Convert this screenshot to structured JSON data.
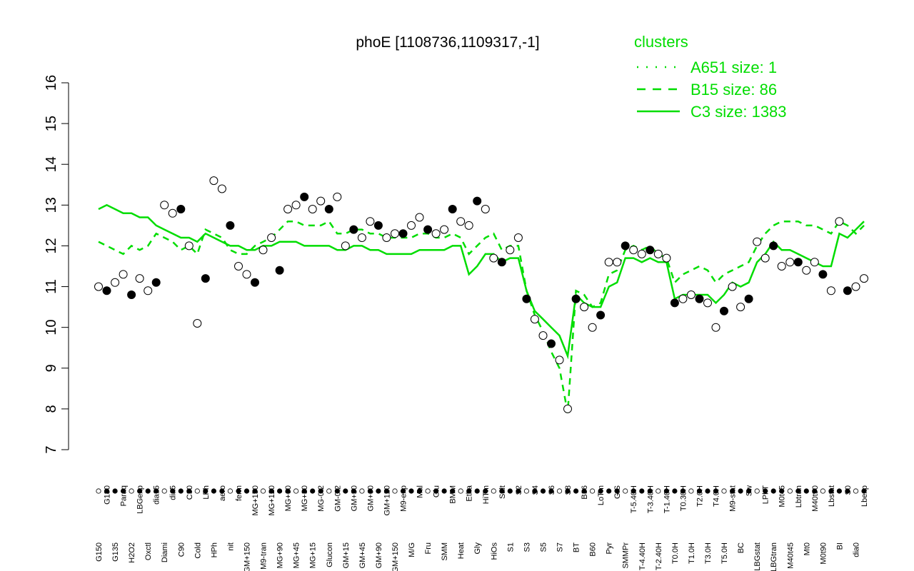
{
  "chart_data": {
    "type": "line",
    "title": "phoE [1108736,1109317,-1]",
    "xlabel": "",
    "ylabel": "",
    "ylim": [
      7,
      16
    ],
    "yticks": [
      7,
      8,
      9,
      10,
      11,
      12,
      13,
      14,
      15,
      16
    ],
    "grid": false,
    "legend": {
      "title": "clusters",
      "placement": "top-right",
      "entries": [
        {
          "label": "A651 size: 1",
          "style": "dotted"
        },
        {
          "label": "B15 size: 86",
          "style": "dashed"
        },
        {
          "label": "C3 size: 1383",
          "style": "solid"
        }
      ]
    },
    "line_color": "#00dd00",
    "x_tick_labels": [
      "G150",
      "G180",
      "G135",
      "Paraq",
      "H2O2",
      "LBGexp",
      "Oxctl",
      "dia15",
      "Diami",
      "dia5",
      "C90",
      "C30",
      "Cold",
      "LPh",
      "HPh",
      "aero",
      "nit",
      "ferm",
      "GM+150",
      "MG+150",
      "M9-tran",
      "MG+120",
      "MG+90",
      "MG+60",
      "MG+45",
      "MG+30",
      "MG+15",
      "MG-0.2",
      "Glucon",
      "GM-0.2",
      "GM+15",
      "GM+30",
      "GM+45",
      "GM+60",
      "GM+90",
      "GM+120",
      "GM+150",
      "M9-exp",
      "M/G",
      "Mal",
      "Fru",
      "Glu",
      "SMM",
      "BMM",
      "Heat",
      "Etha",
      "Gly",
      "HiTm",
      "HiOs",
      "Salt",
      "S1",
      "S2",
      "S3",
      "S4",
      "S5",
      "S6",
      "S7",
      "S8",
      "BT",
      "B36",
      "B60",
      "LoTm",
      "Pyr",
      "G/S",
      "SMMPr",
      "T-5.40H",
      "T-4.40H",
      "T-3.40H",
      "T-2.40H",
      "T-1.40H",
      "T0.0H",
      "T0.30H",
      "T1.0H",
      "T2.0H",
      "T3.0H",
      "T4.0H",
      "T5.0H",
      "M9-stat",
      "BC",
      "Sw",
      "LBGstat",
      "LPhT",
      "LBGtran",
      "M0t45",
      "M40t45",
      "Lbtran",
      "Mt0",
      "M40t90",
      "M0t90",
      "Lbstat",
      "BI",
      "S0",
      "dia0",
      "Lbexp"
    ],
    "series": [
      {
        "name": "",
        "style": "points",
        "values": [
          11.0,
          10.9,
          11.1,
          11.3,
          10.8,
          11.2,
          10.9,
          11.1,
          13.0,
          12.8,
          12.9,
          12.0,
          10.1,
          11.2,
          13.6,
          13.4,
          12.5,
          11.5,
          11.3,
          11.1,
          11.9,
          12.2,
          11.4,
          12.9,
          13.0,
          13.2,
          12.9,
          13.1,
          12.9,
          13.2,
          12.0,
          12.4,
          12.2,
          12.6,
          12.5,
          12.2,
          12.3,
          12.3,
          12.5,
          12.7,
          12.4,
          12.3,
          12.4,
          12.9,
          12.6,
          12.5,
          13.1,
          12.9,
          11.7,
          11.6,
          11.9,
          12.2,
          10.7,
          10.2,
          9.8,
          9.6,
          9.2,
          8.0,
          10.7,
          10.5,
          10.0,
          10.3,
          11.6,
          11.6,
          12.0,
          11.9,
          11.8,
          11.9,
          11.8,
          11.7,
          10.6,
          10.7,
          10.8,
          10.7,
          10.6,
          10.0,
          10.4,
          11.0,
          10.5,
          10.7,
          12.1,
          11.7,
          12.0,
          11.5,
          11.6,
          11.6,
          11.4,
          11.6,
          11.3,
          10.9,
          12.6,
          10.9,
          11.0,
          11.2
        ]
      },
      {
        "name": "",
        "style": "solid",
        "values": [
          12.9,
          13.0,
          12.9,
          12.8,
          12.8,
          12.7,
          12.7,
          12.5,
          12.4,
          12.3,
          12.2,
          12.2,
          12.1,
          12.3,
          12.2,
          12.1,
          12.0,
          12.0,
          11.9,
          11.9,
          12.0,
          12.0,
          12.1,
          12.1,
          12.1,
          12.0,
          12.0,
          12.0,
          12.0,
          11.9,
          11.9,
          12.0,
          12.0,
          11.9,
          11.9,
          11.8,
          11.8,
          11.8,
          11.8,
          11.9,
          11.9,
          11.9,
          11.9,
          12.0,
          12.0,
          11.3,
          11.5,
          11.8,
          11.8,
          11.6,
          11.7,
          11.7,
          10.9,
          10.4,
          10.2,
          10.0,
          9.8,
          9.3,
          10.8,
          10.6,
          10.5,
          10.5,
          11.0,
          11.1,
          11.7,
          11.7,
          11.6,
          11.7,
          11.6,
          11.6,
          10.7,
          10.8,
          10.8,
          10.8,
          10.8,
          10.6,
          10.8,
          11.1,
          11.0,
          11.1,
          11.6,
          11.8,
          12.1,
          11.9,
          11.9,
          11.8,
          11.7,
          11.6,
          11.5,
          11.5,
          12.3,
          12.2,
          12.4,
          12.6
        ]
      },
      {
        "name": "",
        "style": "dashed",
        "values": [
          12.1,
          12.0,
          11.9,
          11.8,
          12.0,
          11.9,
          12.0,
          12.3,
          12.2,
          12.1,
          11.9,
          12.0,
          11.8,
          12.4,
          12.3,
          12.2,
          11.9,
          11.8,
          11.8,
          12.0,
          12.1,
          12.2,
          12.4,
          12.6,
          12.6,
          12.5,
          12.5,
          12.5,
          12.6,
          12.3,
          12.3,
          12.4,
          12.4,
          12.3,
          12.3,
          12.2,
          12.2,
          12.2,
          12.2,
          12.3,
          12.3,
          12.2,
          12.2,
          12.3,
          12.2,
          11.8,
          12.0,
          12.2,
          12.3,
          11.9,
          12.0,
          12.0,
          10.9,
          10.3,
          9.9,
          9.4,
          9.0,
          7.9,
          10.9,
          10.8,
          10.5,
          10.6,
          11.3,
          11.4,
          11.9,
          12.0,
          11.9,
          12.0,
          11.8,
          11.7,
          11.1,
          11.3,
          11.4,
          11.5,
          11.4,
          11.1,
          11.3,
          11.4,
          11.5,
          11.6,
          12.0,
          12.3,
          12.5,
          12.6,
          12.6,
          12.6,
          12.5,
          12.5,
          12.4,
          12.3,
          12.6,
          12.5,
          12.3,
          12.5
        ]
      }
    ]
  }
}
